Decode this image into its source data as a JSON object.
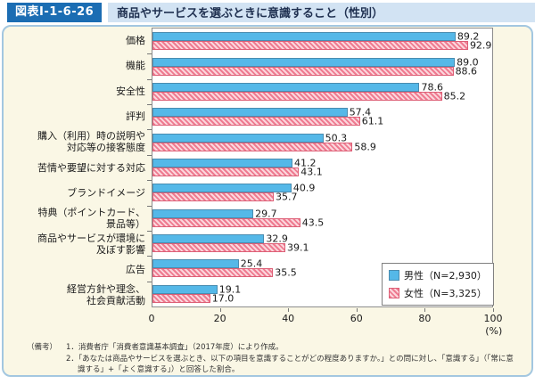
{
  "header": {
    "figure_label": "図表Ⅰ-1-6-26",
    "title": "商品やサービスを選ぶときに意識すること（性別）"
  },
  "chart_data": {
    "type": "bar",
    "orientation": "horizontal",
    "title": "商品やサービスを選ぶときに意識すること（性別）",
    "xlim": [
      0,
      100
    ],
    "x_ticks": [
      0,
      20,
      40,
      60,
      80,
      100
    ],
    "x_unit": "(%)",
    "grid": false,
    "legend_position": "inside-bottom-right",
    "categories": [
      [
        "価格"
      ],
      [
        "機能"
      ],
      [
        "安全性"
      ],
      [
        "評判"
      ],
      [
        "購入（利用）時の説明や",
        "対応等の接客態度"
      ],
      [
        "苦情や要望に対する対応"
      ],
      [
        "ブランドイメージ"
      ],
      [
        "特典（ポイントカード、",
        "景品等）"
      ],
      [
        "商品やサービスが環境に",
        "及ぼす影響"
      ],
      [
        "広告"
      ],
      [
        "経営方針や理念、",
        "社会貢献活動"
      ]
    ],
    "series": [
      {
        "name": "男性（N=2,930）",
        "color": "#55b8e8",
        "border_color": "#4a8cb0",
        "pattern": "solid",
        "values": [
          89.2,
          89.0,
          78.6,
          57.4,
          50.3,
          41.2,
          40.9,
          29.7,
          32.9,
          25.4,
          19.1
        ]
      },
      {
        "name": "女性（N=3,325）",
        "color": "#ef7b91",
        "border_color": "#dd5f76",
        "pattern": "diagonal-hatch",
        "values": [
          92.9,
          88.6,
          85.2,
          61.1,
          58.9,
          43.1,
          35.7,
          43.5,
          39.1,
          35.5,
          17.0
        ]
      }
    ]
  },
  "footnote": {
    "prefix": "（備考）",
    "notes": [
      "1．消費者庁「消費者意識基本調査」（2017年度）により作成。",
      "2．「あなたは商品やサービスを選ぶとき、以下の項目を意識することがどの程度ありますか。」との問に対し、「意識する」（「常に意識する」+「よく意識する」）と回答した割合。"
    ]
  },
  "colors": {
    "header_label_bg": "#1b6db3",
    "header_strip_bg": "#d2e3f3",
    "content_bg": "#faf7e5",
    "content_border": "#a3c7e0",
    "plot_frame": "#8c8c8c",
    "male_bar": "#55b8e8",
    "female_bar": "#ef7b91"
  }
}
